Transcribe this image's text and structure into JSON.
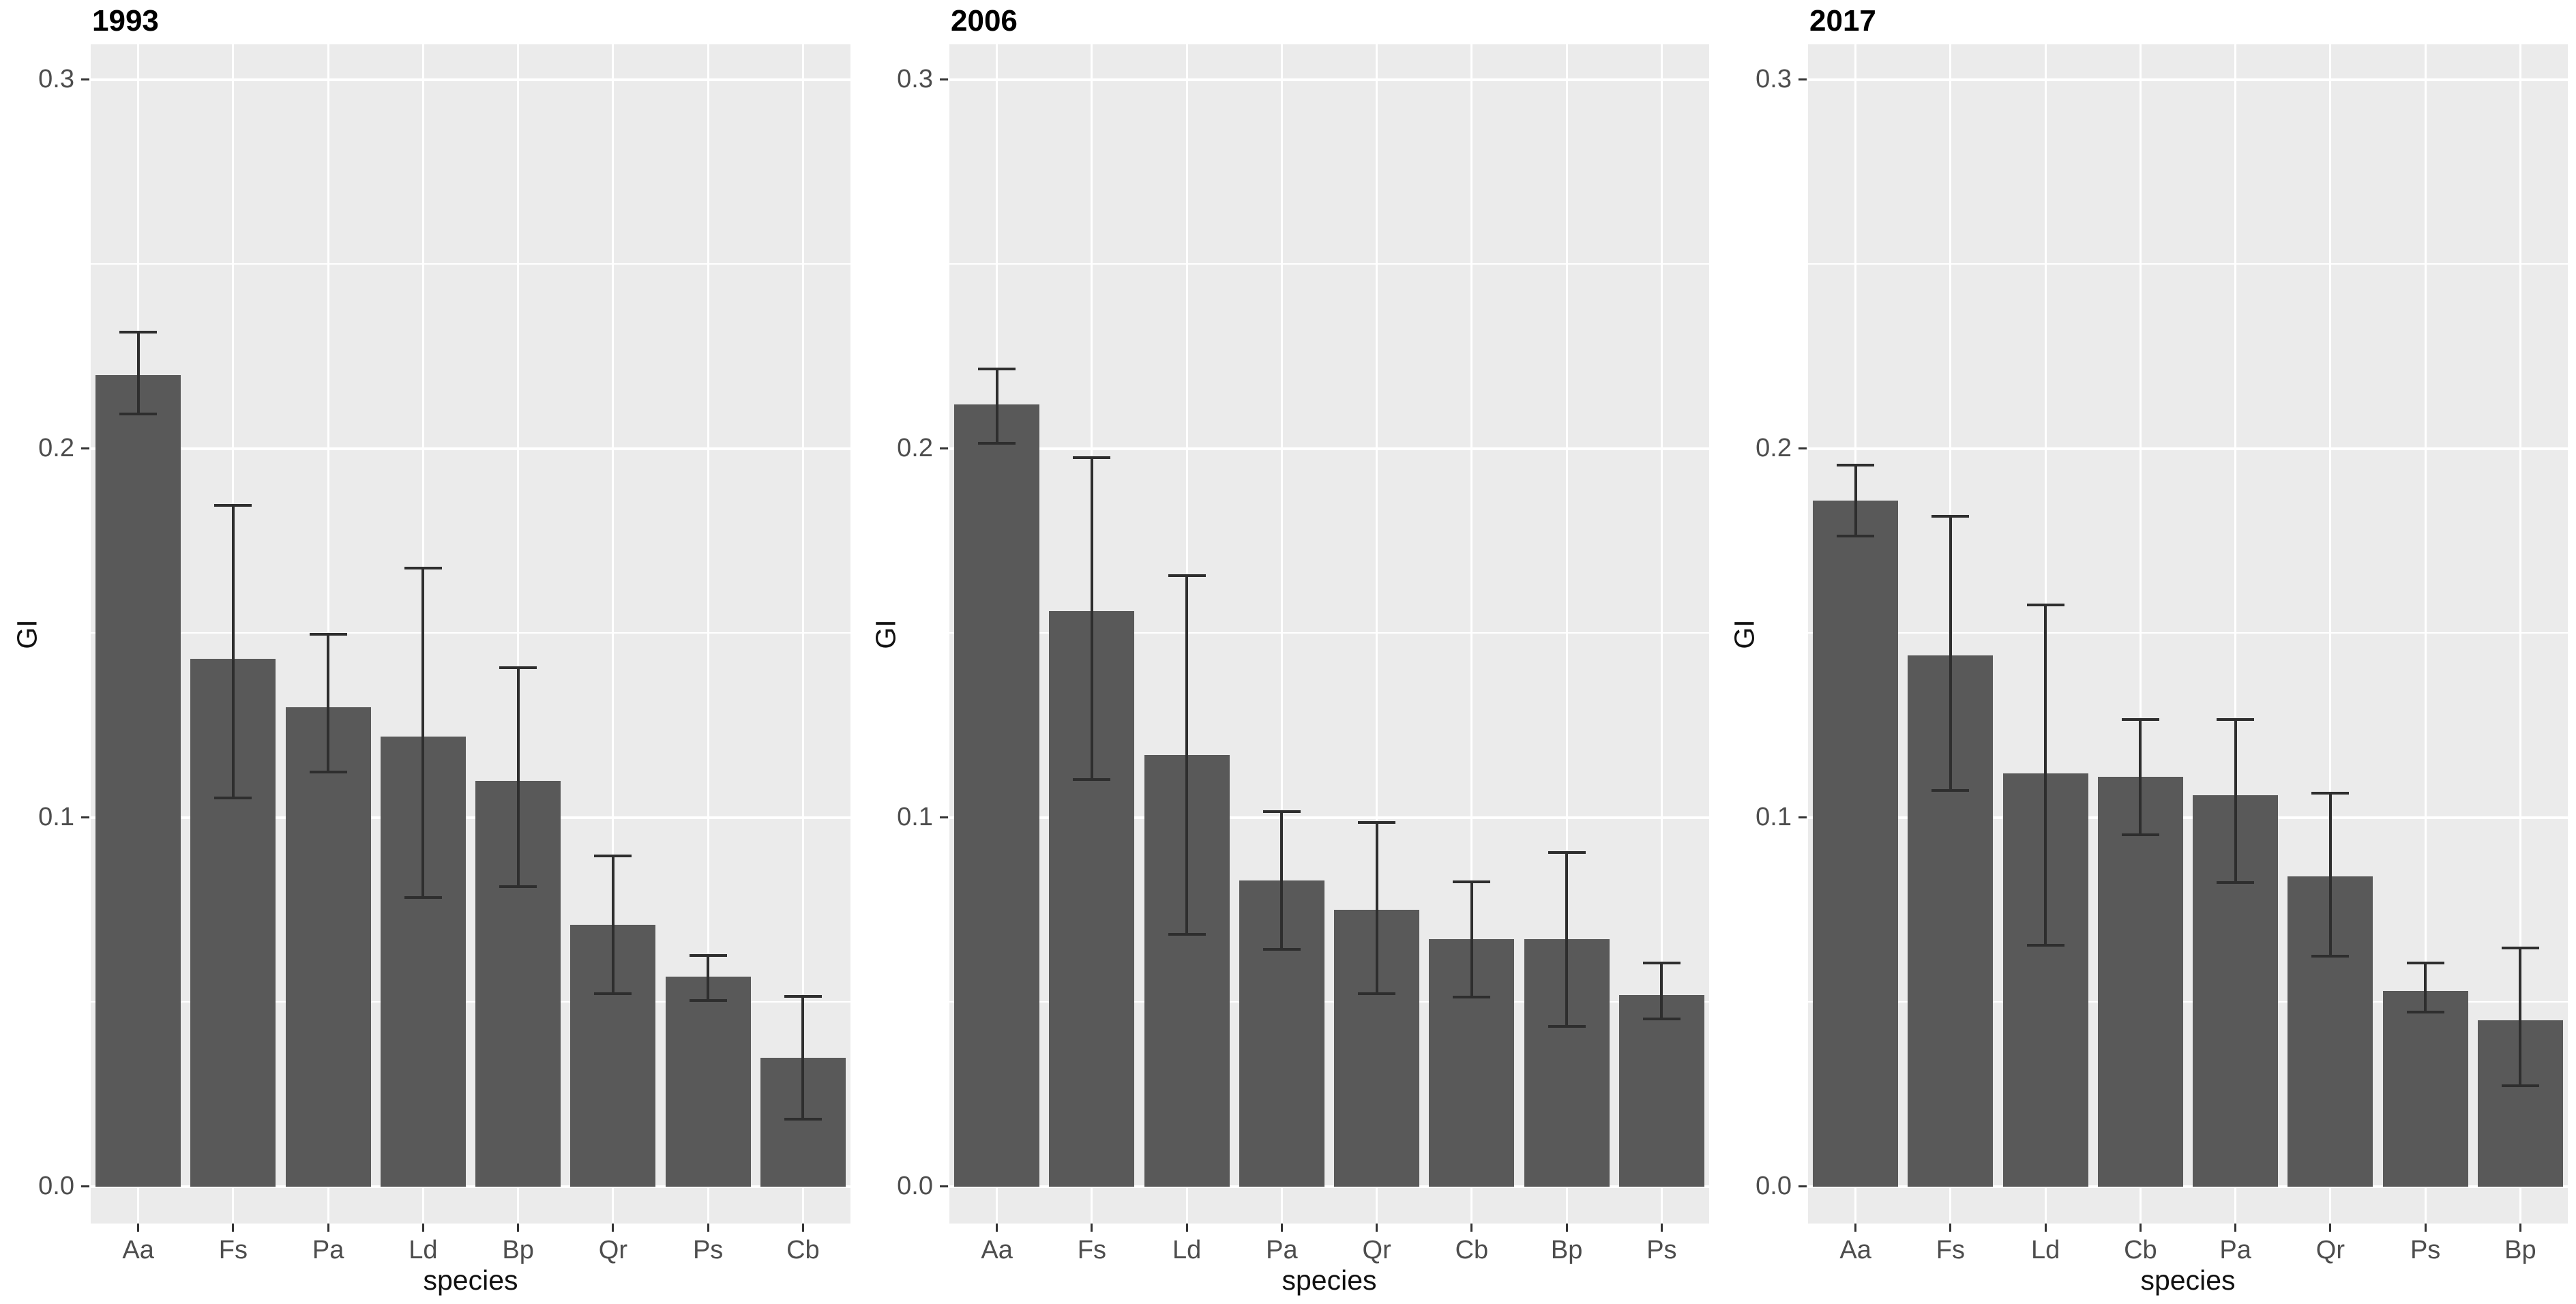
{
  "page": {
    "background": "#ffffff"
  },
  "colors": {
    "bar_fill": "#595959",
    "panel_background": "#ebebeb",
    "gridline": "#ffffff",
    "error_bar": "#2e2e2e",
    "tick_label": "#4d4d4d",
    "axis_title": "#111111",
    "plot_title": "#000000",
    "tick_mark": "#333333"
  },
  "chart_data": [
    {
      "type": "bar",
      "title": "1993",
      "xlabel": "species",
      "ylabel": "GI",
      "categories": [
        "Aa",
        "Fs",
        "Pa",
        "Ld",
        "Bp",
        "Qr",
        "Ps",
        "Cb"
      ],
      "values": [
        0.22,
        0.143,
        0.13,
        0.122,
        0.11,
        0.071,
        0.057,
        0.035
      ],
      "error_low": [
        0.209,
        0.105,
        0.112,
        0.078,
        0.081,
        0.052,
        0.05,
        0.018
      ],
      "error_high": [
        0.232,
        0.185,
        0.15,
        0.168,
        0.141,
        0.09,
        0.063,
        0.052
      ],
      "yticks": [
        0.0,
        0.1,
        0.2,
        0.3
      ],
      "ytick_labels": [
        "0.0",
        "0.1",
        "0.2",
        "0.3"
      ],
      "minor_gridlines": [
        0.05,
        0.15,
        0.25
      ],
      "ylim": [
        -0.01,
        0.3096
      ],
      "grid": true,
      "legend": false
    },
    {
      "type": "bar",
      "title": "2006",
      "xlabel": "species",
      "ylabel": "GI",
      "categories": [
        "Aa",
        "Fs",
        "Ld",
        "Pa",
        "Qr",
        "Cb",
        "Bp",
        "Ps"
      ],
      "values": [
        0.212,
        0.156,
        0.117,
        0.083,
        0.075,
        0.067,
        0.067,
        0.052
      ],
      "error_low": [
        0.201,
        0.11,
        0.068,
        0.064,
        0.052,
        0.051,
        0.043,
        0.045
      ],
      "error_high": [
        0.222,
        0.198,
        0.166,
        0.102,
        0.099,
        0.083,
        0.091,
        0.061
      ],
      "yticks": [
        0.0,
        0.1,
        0.2,
        0.3
      ],
      "ytick_labels": [
        "0.0",
        "0.1",
        "0.2",
        "0.3"
      ],
      "minor_gridlines": [
        0.05,
        0.15,
        0.25
      ],
      "ylim": [
        -0.01,
        0.3096
      ],
      "grid": true,
      "legend": false
    },
    {
      "type": "bar",
      "title": "2017",
      "xlabel": "species",
      "ylabel": "GI",
      "categories": [
        "Aa",
        "Fs",
        "Ld",
        "Cb",
        "Pa",
        "Qr",
        "Ps",
        "Bp"
      ],
      "values": [
        0.186,
        0.144,
        0.112,
        0.111,
        0.106,
        0.084,
        0.053,
        0.045
      ],
      "error_low": [
        0.176,
        0.107,
        0.065,
        0.095,
        0.082,
        0.062,
        0.047,
        0.027
      ],
      "error_high": [
        0.196,
        0.182,
        0.158,
        0.127,
        0.127,
        0.107,
        0.061,
        0.065
      ],
      "yticks": [
        0.0,
        0.1,
        0.2,
        0.3
      ],
      "ytick_labels": [
        "0.0",
        "0.1",
        "0.2",
        "0.3"
      ],
      "minor_gridlines": [
        0.05,
        0.15,
        0.25
      ],
      "ylim": [
        -0.01,
        0.3096
      ],
      "grid": true,
      "legend": false
    }
  ]
}
